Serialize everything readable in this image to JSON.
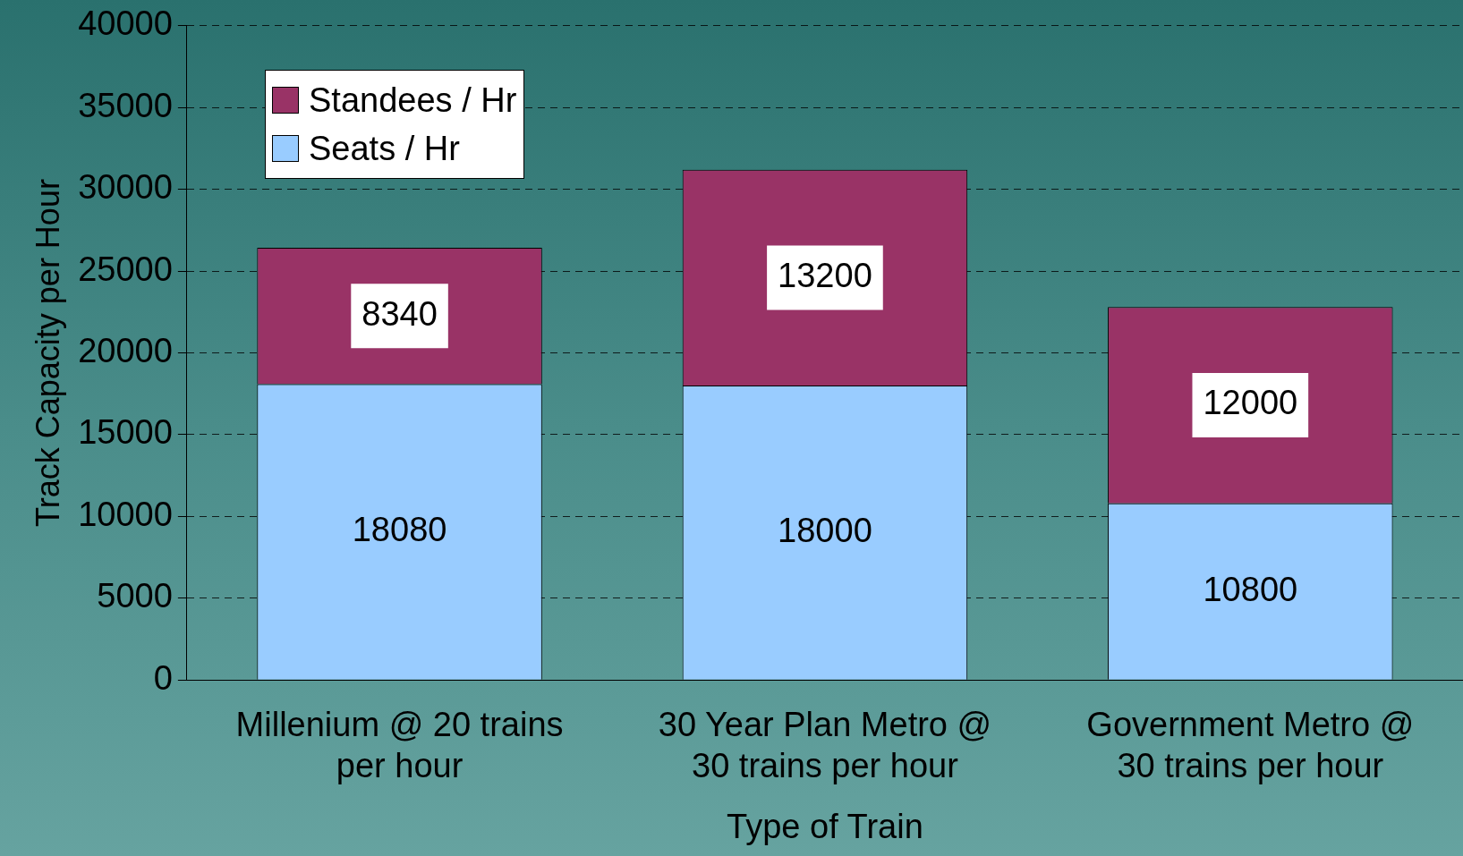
{
  "chart_data": {
    "type": "bar",
    "stacked": true,
    "xlabel": "Type of Train",
    "ylabel": "Track Capacity per Hour",
    "categories": [
      "Millenium @ 20 trains per hour",
      "30 Year Plan Metro @ 30 trains per hour",
      "Government Metro @ 30 trains per hour"
    ],
    "series": [
      {
        "name": "Seats / Hr",
        "color": "#99ccff",
        "values": [
          18080,
          18000,
          10800
        ]
      },
      {
        "name": "Standees / Hr",
        "color": "#993366",
        "values": [
          8340,
          13200,
          12000
        ]
      }
    ],
    "ylim": [
      0,
      40000
    ],
    "yticks": [
      0,
      5000,
      10000,
      15000,
      20000,
      25000,
      30000,
      35000,
      40000
    ],
    "grid": "y",
    "legend": "top left",
    "data_labels": true
  }
}
